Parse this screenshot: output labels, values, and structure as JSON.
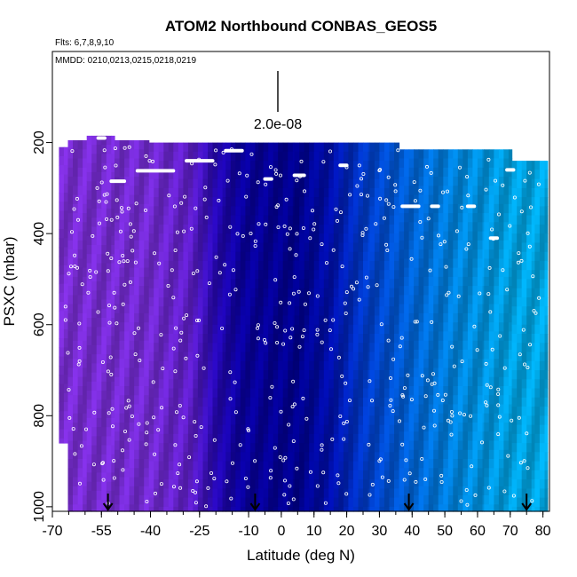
{
  "chart_data": {
    "type": "heatmap",
    "title": "ATOM2 Northbound CONBAS_GEOS5",
    "flights_label": "Flts: 6,7,8,9,10",
    "dates_label": "MMDD: 0210,0213,0215,0218,0219",
    "xlabel": "Latitude (deg N)",
    "ylabel": "PSXC (mbar)",
    "xlim": [
      -70,
      82
    ],
    "ylim": [
      1010,
      0
    ],
    "xticks": [
      -70,
      -55,
      -40,
      -25,
      -10,
      0,
      10,
      20,
      30,
      40,
      50,
      60,
      70,
      80
    ],
    "yticks": [
      200,
      400,
      600,
      800,
      1000
    ],
    "scale_label": "2.0e-08",
    "arrow_latitudes": [
      -53,
      -8,
      39,
      75
    ],
    "color_stops": [
      {
        "lat": -70,
        "color": "#8a33ee"
      },
      {
        "lat": -40,
        "color": "#8030ea"
      },
      {
        "lat": -28,
        "color": "#6a22e0"
      },
      {
        "lat": -20,
        "color": "#2a08c8"
      },
      {
        "lat": -12,
        "color": "#0a00b0"
      },
      {
        "lat": 5,
        "color": "#00009e"
      },
      {
        "lat": 15,
        "color": "#0010c0"
      },
      {
        "lat": 25,
        "color": "#0040e0"
      },
      {
        "lat": 40,
        "color": "#0070f0"
      },
      {
        "lat": 55,
        "color": "#0098f8"
      },
      {
        "lat": 70,
        "color": "#00b4fc"
      },
      {
        "lat": 82,
        "color": "#00bcff"
      }
    ],
    "profiles": [
      {
        "lat": -67.5,
        "top": 210,
        "bottom": 860
      },
      {
        "lat": -63,
        "top": 195,
        "bottom": 1010
      },
      {
        "lat": -56,
        "top": 185,
        "bottom": 1010
      },
      {
        "lat": -46,
        "top": 195,
        "bottom": 1010
      },
      {
        "lat": -35,
        "top": 200,
        "bottom": 1010
      },
      {
        "lat": -22,
        "top": 200,
        "bottom": 1010
      },
      {
        "lat": -12,
        "top": 200,
        "bottom": 1010
      },
      {
        "lat": -2,
        "top": 200,
        "bottom": 1010
      },
      {
        "lat": 10,
        "top": 200,
        "bottom": 1010
      },
      {
        "lat": 22,
        "top": 200,
        "bottom": 1010
      },
      {
        "lat": 32,
        "top": 200,
        "bottom": 1010
      },
      {
        "lat": 40,
        "top": 215,
        "bottom": 1010
      },
      {
        "lat": 50,
        "top": 215,
        "bottom": 1010
      },
      {
        "lat": 58,
        "top": 215,
        "bottom": 1010
      },
      {
        "lat": 66,
        "top": 215,
        "bottom": 1010
      },
      {
        "lat": 75,
        "top": 240,
        "bottom": 1010
      },
      {
        "lat": 80,
        "top": 240,
        "bottom": 1010
      }
    ],
    "ceiling_segments": [
      {
        "lat_start": -56,
        "lat_end": -54,
        "p": 190
      },
      {
        "lat_start": -52,
        "lat_end": -48,
        "p": 285
      },
      {
        "lat_start": -44,
        "lat_end": -33,
        "p": 262
      },
      {
        "lat_start": -29,
        "lat_end": -21,
        "p": 240
      },
      {
        "lat_start": -17,
        "lat_end": -12,
        "p": 218
      },
      {
        "lat_start": -5,
        "lat_end": -3,
        "p": 280
      },
      {
        "lat_start": 4,
        "lat_end": 7,
        "p": 272
      },
      {
        "lat_start": 18,
        "lat_end": 20,
        "p": 250
      },
      {
        "lat_start": 37,
        "lat_end": 42,
        "p": 340
      },
      {
        "lat_start": 46,
        "lat_end": 48,
        "p": 340
      },
      {
        "lat_start": 57,
        "lat_end": 59,
        "p": 340
      },
      {
        "lat_start": 64,
        "lat_end": 66,
        "p": 410
      },
      {
        "lat_start": 69,
        "lat_end": 71,
        "p": 260
      }
    ],
    "legend": "none",
    "grid": false
  }
}
